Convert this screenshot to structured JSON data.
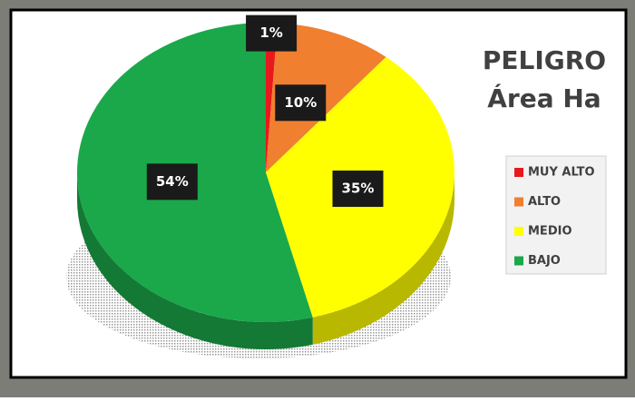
{
  "chart_data": {
    "type": "pie",
    "title": "PELIGRO",
    "subtitle": "Área Ha",
    "categories": [
      "MUY ALTO",
      "ALTO",
      "MEDIO",
      "BAJO"
    ],
    "values": [
      1,
      10,
      35,
      54
    ],
    "value_labels": [
      "1%",
      "10%",
      "35%",
      "54%"
    ],
    "colors": [
      "#e8191c",
      "#f07f2f",
      "#ffff00",
      "#1aa84a"
    ],
    "legend": "right"
  }
}
